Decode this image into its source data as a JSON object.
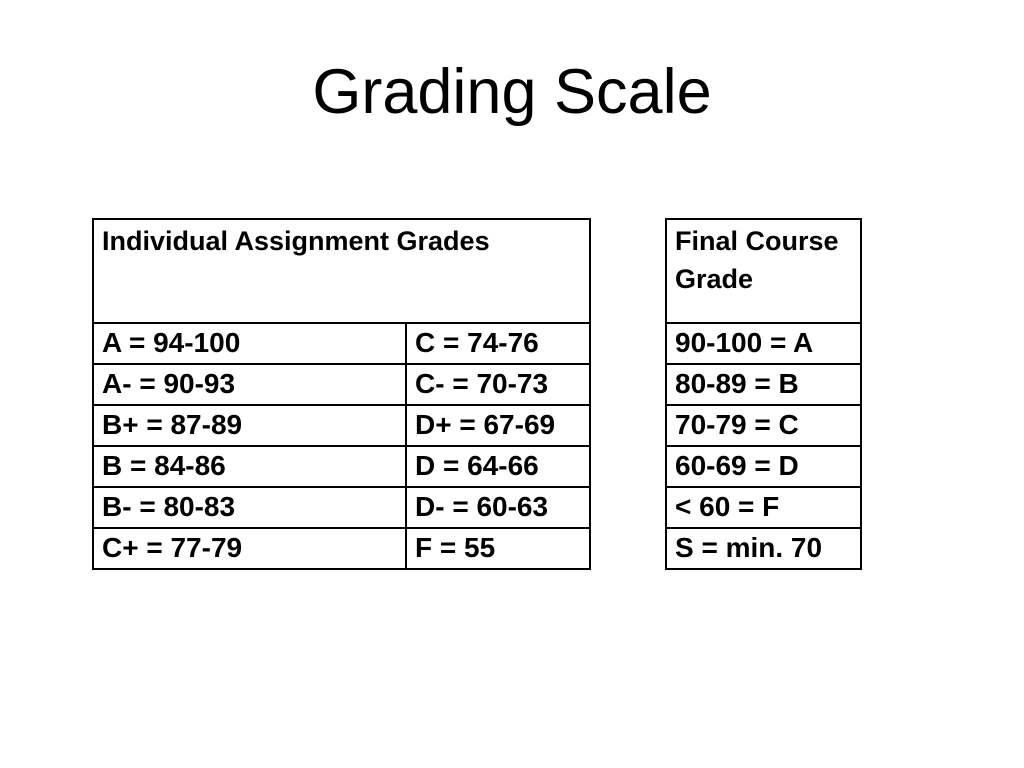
{
  "slide": {
    "title": "Grading Scale",
    "background_color": "#ffffff",
    "text_color": "#000000",
    "border_color": "#000000"
  },
  "assignment_table": {
    "header": "Individual Assignment Grades",
    "rows": [
      {
        "left": "A = 94-100",
        "right": "C = 74-76"
      },
      {
        "left": "A- = 90-93",
        "right": "C- = 70-73"
      },
      {
        "left": "B+ = 87-89",
        "right": "D+ = 67-69"
      },
      {
        "left": "B = 84-86",
        "right": "D = 64-66"
      },
      {
        "left": "B- = 80-83",
        "right": "D- = 60-63"
      },
      {
        "left": "C+ = 77-79",
        "right": "F = 55"
      }
    ]
  },
  "final_table": {
    "header": "Final Course Grade",
    "rows": [
      "90-100 = A",
      "80-89 = B",
      "70-79 = C",
      "60-69 = D",
      "< 60 = F",
      "S = min. 70"
    ]
  }
}
